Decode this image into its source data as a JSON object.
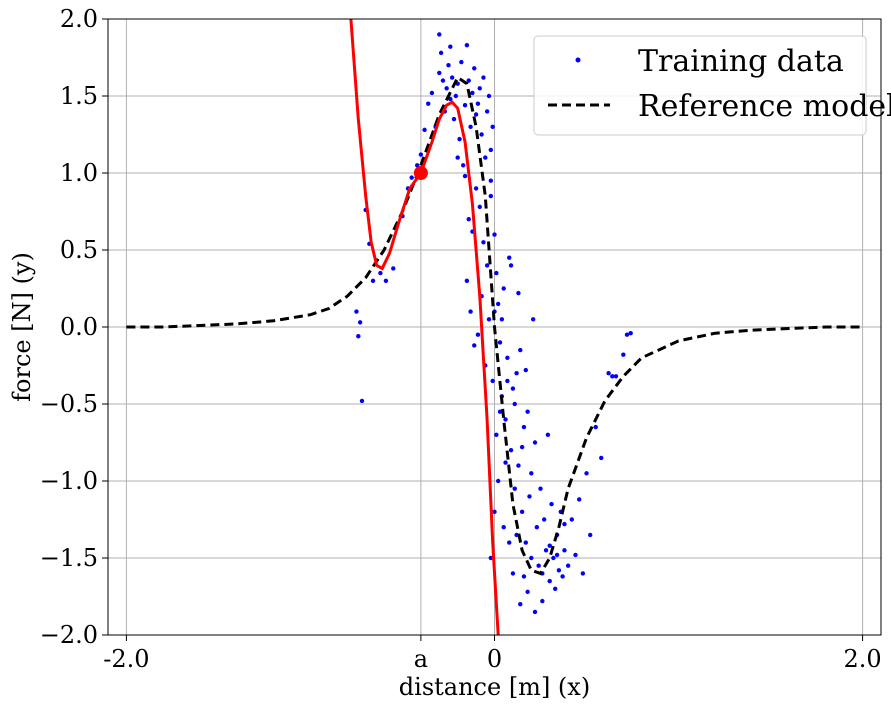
{
  "chart_data": {
    "type": "scatter",
    "title": "",
    "xlabel": "distance [m] (x)",
    "ylabel": "force [N] (y)",
    "xlim": [
      -2.1,
      2.1
    ],
    "ylim": [
      -2.0,
      2.0
    ],
    "grid": true,
    "legend_position": "top-right",
    "x_ticks": [
      {
        "value": -2.0,
        "label": "-2.0"
      },
      {
        "value": -0.4,
        "label": "a"
      },
      {
        "value": 0.0,
        "label": "0"
      },
      {
        "value": 2.0,
        "label": "2.0"
      }
    ],
    "y_ticks": [
      {
        "value": 2.0,
        "label": "2.0"
      },
      {
        "value": 1.5,
        "label": "1.5"
      },
      {
        "value": 1.0,
        "label": "1.0"
      },
      {
        "value": 0.5,
        "label": "0.5"
      },
      {
        "value": 0.0,
        "label": "0.0"
      },
      {
        "value": -0.5,
        "label": "−0.5"
      },
      {
        "value": -1.0,
        "label": "−1.0"
      },
      {
        "value": -1.5,
        "label": "−1.5"
      },
      {
        "value": -2.0,
        "label": "−2.0"
      }
    ],
    "series": [
      {
        "name": "Training data",
        "kind": "scatter",
        "color": "#0000ff",
        "points": [
          [
            -0.72,
            -0.48
          ],
          [
            -0.7,
            0.76
          ],
          [
            -0.68,
            0.54
          ],
          [
            -0.66,
            0.3
          ],
          [
            -0.75,
            0.1
          ],
          [
            -0.74,
            -0.06
          ],
          [
            -0.73,
            0.03
          ],
          [
            -0.62,
            0.35
          ],
          [
            -0.59,
            0.3
          ],
          [
            -0.55,
            0.38
          ],
          [
            -0.5,
            0.72
          ],
          [
            -0.47,
            0.9
          ],
          [
            -0.45,
            0.97
          ],
          [
            -0.42,
            1.05
          ],
          [
            -0.4,
            1.12
          ],
          [
            -0.38,
            1.28
          ],
          [
            -0.36,
            1.45
          ],
          [
            -0.34,
            1.52
          ],
          [
            -0.32,
            1.3
          ],
          [
            -0.3,
            1.65
          ],
          [
            -0.29,
            1.78
          ],
          [
            -0.28,
            1.6
          ],
          [
            -0.27,
            1.4
          ],
          [
            -0.26,
            1.55
          ],
          [
            -0.25,
            1.7
          ],
          [
            -0.24,
            1.48
          ],
          [
            -0.23,
            1.62
          ],
          [
            -0.22,
            1.35
          ],
          [
            -0.21,
            1.5
          ],
          [
            -0.2,
            1.58
          ],
          [
            -0.19,
            1.22
          ],
          [
            -0.18,
            1.72
          ],
          [
            -0.17,
            1.05
          ],
          [
            -0.16,
            1.44
          ],
          [
            -0.15,
            1.83
          ],
          [
            -0.14,
            1.6
          ],
          [
            -0.13,
            1.3
          ],
          [
            -0.12,
            1.52
          ],
          [
            -0.11,
            1.68
          ],
          [
            -0.1,
            1.38
          ],
          [
            -0.09,
            1.45
          ],
          [
            -0.08,
            1.55
          ],
          [
            -0.07,
            1.25
          ],
          [
            -0.06,
            1.62
          ],
          [
            -0.05,
            1.1
          ],
          [
            -0.04,
            1.4
          ],
          [
            -0.03,
            1.5
          ],
          [
            -0.02,
            1.15
          ],
          [
            -0.01,
            1.3
          ],
          [
            -0.3,
            1.9
          ],
          [
            -0.24,
            1.82
          ],
          [
            -0.2,
            1.1
          ],
          [
            -0.16,
            0.98
          ],
          [
            -0.14,
            0.7
          ],
          [
            -0.12,
            0.62
          ],
          [
            -0.1,
            0.9
          ],
          [
            -0.08,
            0.78
          ],
          [
            -0.06,
            0.55
          ],
          [
            -0.04,
            0.4
          ],
          [
            -0.02,
            0.85
          ],
          [
            -0.15,
            0.3
          ],
          [
            -0.13,
            0.1
          ],
          [
            -0.11,
            -0.12
          ],
          [
            -0.09,
            -0.05
          ],
          [
            -0.07,
            0.2
          ],
          [
            -0.05,
            -0.25
          ],
          [
            -0.03,
            0.05
          ],
          [
            -0.01,
            -0.35
          ],
          [
            0.0,
            0.6
          ],
          [
            0.01,
            0.35
          ],
          [
            0.02,
            0.15
          ],
          [
            0.03,
            -0.1
          ],
          [
            0.04,
            -0.45
          ],
          [
            0.05,
            0.25
          ],
          [
            0.06,
            -0.6
          ],
          [
            0.07,
            -0.2
          ],
          [
            0.08,
            0.45
          ],
          [
            0.09,
            -0.8
          ],
          [
            0.1,
            -0.4
          ],
          [
            0.11,
            -1.05
          ],
          [
            0.12,
            -0.3
          ],
          [
            0.13,
            -0.9
          ],
          [
            0.14,
            -0.15
          ],
          [
            0.15,
            -1.2
          ],
          [
            0.16,
            -0.65
          ],
          [
            0.17,
            -1.4
          ],
          [
            0.18,
            -0.55
          ],
          [
            0.19,
            -1.1
          ],
          [
            0.2,
            -0.95
          ],
          [
            0.21,
            0.05
          ],
          [
            0.22,
            -0.75
          ],
          [
            0.23,
            -1.3
          ],
          [
            0.24,
            -1.55
          ],
          [
            0.25,
            -1.05
          ],
          [
            0.26,
            -1.6
          ],
          [
            0.27,
            -1.25
          ],
          [
            0.28,
            -1.45
          ],
          [
            0.29,
            -0.7
          ],
          [
            0.3,
            -1.65
          ],
          [
            0.31,
            -1.15
          ],
          [
            0.32,
            -1.5
          ],
          [
            0.33,
            -1.7
          ],
          [
            0.34,
            -1.35
          ],
          [
            0.35,
            -1.58
          ],
          [
            0.36,
            -1.2
          ],
          [
            0.37,
            -1.62
          ],
          [
            0.38,
            -1.45
          ],
          [
            0.4,
            -1.55
          ],
          [
            0.42,
            -1.25
          ],
          [
            0.44,
            -1.48
          ],
          [
            0.46,
            -1.12
          ],
          [
            0.48,
            -1.6
          ],
          [
            0.5,
            -0.95
          ],
          [
            0.52,
            -1.35
          ],
          [
            0.55,
            -0.65
          ],
          [
            0.58,
            -0.85
          ],
          [
            0.62,
            -0.3
          ],
          [
            0.66,
            -0.32
          ],
          [
            0.7,
            -0.18
          ],
          [
            0.72,
            -0.05
          ],
          [
            0.74,
            -0.04
          ],
          [
            0.64,
            -0.32
          ],
          [
            -0.02,
            -1.5
          ],
          [
            0.0,
            -1.2
          ],
          [
            0.02,
            -1.0
          ],
          [
            0.05,
            -1.3
          ],
          [
            0.08,
            -1.4
          ],
          [
            0.1,
            -1.6
          ],
          [
            0.14,
            -1.8
          ],
          [
            0.18,
            -1.72
          ],
          [
            0.22,
            -1.85
          ],
          [
            0.26,
            -1.78
          ],
          [
            0.3,
            -1.42
          ],
          [
            0.34,
            -1.48
          ],
          [
            0.38,
            -1.28
          ],
          [
            0.2,
            -1.5
          ],
          [
            0.16,
            -1.62
          ],
          [
            0.12,
            -1.35
          ],
          [
            0.06,
            -0.88
          ],
          [
            0.03,
            -0.55
          ],
          [
            -0.02,
            0.95
          ],
          [
            0.0,
            0.1
          ],
          [
            0.01,
            -0.7
          ],
          [
            0.04,
            0.05
          ],
          [
            0.07,
            -0.35
          ],
          [
            0.09,
            0.4
          ],
          [
            0.11,
            -0.5
          ],
          [
            0.13,
            0.22
          ],
          [
            0.15,
            -0.78
          ],
          [
            0.17,
            -0.28
          ]
        ]
      },
      {
        "name": "Reference model",
        "kind": "line",
        "style": "dashed",
        "color": "#000000",
        "points": [
          [
            -2.0,
            0.0
          ],
          [
            -1.8,
            0.0
          ],
          [
            -1.6,
            0.01
          ],
          [
            -1.4,
            0.02
          ],
          [
            -1.2,
            0.04
          ],
          [
            -1.0,
            0.08
          ],
          [
            -0.9,
            0.12
          ],
          [
            -0.8,
            0.2
          ],
          [
            -0.7,
            0.32
          ],
          [
            -0.6,
            0.5
          ],
          [
            -0.5,
            0.75
          ],
          [
            -0.4,
            1.05
          ],
          [
            -0.3,
            1.38
          ],
          [
            -0.2,
            1.62
          ],
          [
            -0.15,
            1.58
          ],
          [
            -0.1,
            1.3
          ],
          [
            -0.05,
            0.85
          ],
          [
            0.0,
            0.0
          ],
          [
            0.05,
            -0.6
          ],
          [
            0.1,
            -1.15
          ],
          [
            0.15,
            -1.45
          ],
          [
            0.2,
            -1.58
          ],
          [
            0.25,
            -1.6
          ],
          [
            0.3,
            -1.5
          ],
          [
            0.35,
            -1.3
          ],
          [
            0.4,
            -1.05
          ],
          [
            0.5,
            -0.72
          ],
          [
            0.6,
            -0.48
          ],
          [
            0.7,
            -0.32
          ],
          [
            0.8,
            -0.2
          ],
          [
            1.0,
            -0.09
          ],
          [
            1.2,
            -0.04
          ],
          [
            1.4,
            -0.02
          ],
          [
            1.6,
            -0.01
          ],
          [
            1.8,
            0.0
          ],
          [
            2.0,
            0.0
          ]
        ]
      },
      {
        "name": "",
        "kind": "line",
        "style": "solid",
        "color": "#ff0000",
        "points": [
          [
            -0.78,
            2.0
          ],
          [
            -0.74,
            1.35
          ],
          [
            -0.7,
            0.85
          ],
          [
            -0.67,
            0.55
          ],
          [
            -0.64,
            0.4
          ],
          [
            -0.61,
            0.38
          ],
          [
            -0.57,
            0.48
          ],
          [
            -0.52,
            0.68
          ],
          [
            -0.46,
            0.9
          ],
          [
            -0.4,
            1.0
          ],
          [
            -0.34,
            1.2
          ],
          [
            -0.3,
            1.35
          ],
          [
            -0.26,
            1.44
          ],
          [
            -0.23,
            1.46
          ],
          [
            -0.2,
            1.42
          ],
          [
            -0.16,
            1.2
          ],
          [
            -0.12,
            0.8
          ],
          [
            -0.08,
            0.2
          ],
          [
            -0.04,
            -0.6
          ],
          [
            -0.01,
            -1.4
          ],
          [
            0.02,
            -2.0
          ]
        ]
      }
    ],
    "highlight_point": {
      "x": -0.4,
      "y": 1.0,
      "color": "#ff0000"
    }
  }
}
